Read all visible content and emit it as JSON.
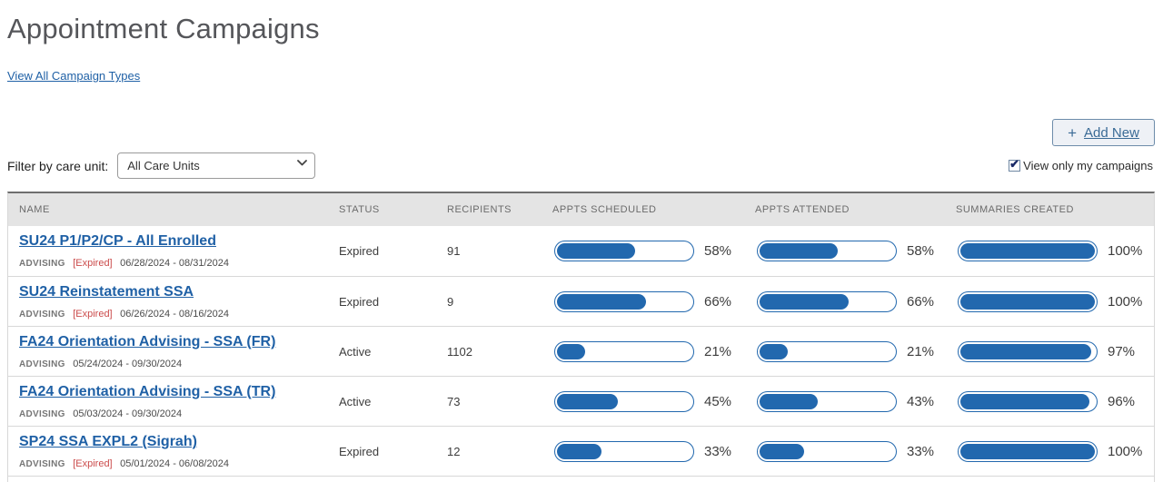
{
  "page": {
    "title": "Appointment Campaigns",
    "view_all_link": "View All Campaign Types"
  },
  "toolbar": {
    "plus_icon": "+",
    "add_new_label": "Add New",
    "filter_label": "Filter by care unit:",
    "care_unit_selected": "All Care Units",
    "view_only_label": "View only my campaigns",
    "view_only_checked": true
  },
  "colors": {
    "accent_blue": "#2268ae",
    "link_blue": "#2061a6",
    "expired_red": "#cb4b4b",
    "header_gray": "#e4e4e4"
  },
  "table": {
    "columns": [
      "NAME",
      "STATUS",
      "RECIPIENTS",
      "APPTS SCHEDULED",
      "APPTS ATTENDED",
      "SUMMARIES CREATED"
    ],
    "rows": [
      {
        "name": "SU24 P1/P2/CP - All Enrolled",
        "care_unit": "ADVISING",
        "expired_tag": "[Expired]",
        "dates": "06/28/2024 - 08/31/2024",
        "status": "Expired",
        "recipients": "91",
        "appts_scheduled": {
          "pct": 58,
          "label": "58%"
        },
        "appts_attended": {
          "pct": 58,
          "label": "58%"
        },
        "summaries_created": {
          "pct": 100,
          "label": "100%"
        }
      },
      {
        "name": "SU24 Reinstatement SSA",
        "care_unit": "ADVISING",
        "expired_tag": "[Expired]",
        "dates": "06/26/2024 - 08/16/2024",
        "status": "Expired",
        "recipients": "9",
        "appts_scheduled": {
          "pct": 66,
          "label": "66%"
        },
        "appts_attended": {
          "pct": 66,
          "label": "66%"
        },
        "summaries_created": {
          "pct": 100,
          "label": "100%"
        }
      },
      {
        "name": "FA24 Orientation Advising - SSA (FR)",
        "care_unit": "ADVISING",
        "expired_tag": null,
        "dates": "05/24/2024 - 09/30/2024",
        "status": "Active",
        "recipients": "1102",
        "appts_scheduled": {
          "pct": 21,
          "label": "21%"
        },
        "appts_attended": {
          "pct": 21,
          "label": "21%"
        },
        "summaries_created": {
          "pct": 97,
          "label": "97%"
        }
      },
      {
        "name": "FA24 Orientation Advising - SSA (TR)",
        "care_unit": "ADVISING",
        "expired_tag": null,
        "dates": "05/03/2024 - 09/30/2024",
        "status": "Active",
        "recipients": "73",
        "appts_scheduled": {
          "pct": 45,
          "label": "45%"
        },
        "appts_attended": {
          "pct": 43,
          "label": "43%"
        },
        "summaries_created": {
          "pct": 96,
          "label": "96%"
        }
      },
      {
        "name": "SP24 SSA EXPL2 (Sigrah)",
        "care_unit": "ADVISING",
        "expired_tag": "[Expired]",
        "dates": "05/01/2024 - 06/08/2024",
        "status": "Expired",
        "recipients": "12",
        "appts_scheduled": {
          "pct": 33,
          "label": "33%"
        },
        "appts_attended": {
          "pct": 33,
          "label": "33%"
        },
        "summaries_created": {
          "pct": 100,
          "label": "100%"
        }
      }
    ]
  }
}
